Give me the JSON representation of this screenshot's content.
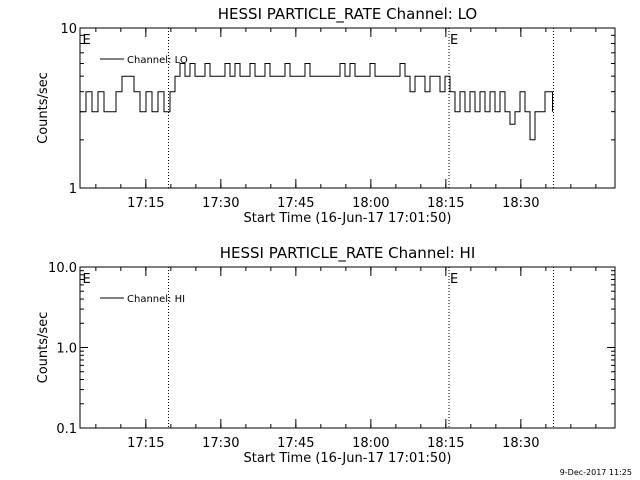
{
  "colors": {
    "background": "#ffffff",
    "foreground": "#000000"
  },
  "footer": {
    "date_stamp": "9-Dec-2017 11:25"
  },
  "chart_data": [
    {
      "type": "line",
      "title": "HESSI PARTICLE_RATE Channel: LO",
      "xlabel": "Start Time (16-Jun-17 17:01:50)",
      "ylabel": "Counts/sec",
      "yscale": "log",
      "ylim": [
        1,
        10
      ],
      "xlim_minutes": [
        0,
        107
      ],
      "ytick_labels": [
        "1",
        "10"
      ],
      "xtick_labels": [
        "17:15",
        "17:30",
        "17:45",
        "18:00",
        "18:15",
        "18:30"
      ],
      "xtick_minutes": [
        13.17,
        28.17,
        43.17,
        58.17,
        73.17,
        88.17
      ],
      "event_marker_label": "E",
      "event_marker_minutes": [
        0.3,
        73.8
      ],
      "vlines_minutes": [
        17.7,
        73.8,
        94.7
      ],
      "legend": "top-left",
      "series": [
        {
          "name": "Channel: LO",
          "x_minutes": [
            0,
            1.2,
            2.4,
            3.6,
            4.8,
            6,
            7.2,
            8.4,
            9.6,
            10.8,
            12,
            13.2,
            14.4,
            15.6,
            16.8,
            17.6,
            18,
            19,
            20,
            21,
            22,
            23,
            24,
            25,
            26,
            27,
            28,
            29,
            30,
            31,
            32,
            33,
            34,
            35,
            36,
            37,
            38,
            39,
            40,
            41,
            42,
            43,
            44,
            45,
            46,
            47,
            48,
            49,
            50,
            51,
            52,
            53,
            54,
            55,
            56,
            57,
            58,
            59,
            60,
            61,
            62,
            63,
            64,
            65,
            66,
            67,
            68,
            69,
            70,
            71,
            72,
            73,
            74,
            75,
            76,
            77,
            78,
            79,
            80,
            81,
            82,
            83,
            84,
            85,
            86,
            87,
            88,
            89,
            90,
            91,
            92,
            93,
            94.5
          ],
          "values": [
            3,
            4,
            3,
            4,
            3,
            3,
            4,
            5,
            5,
            4,
            3,
            4,
            3,
            4,
            3,
            3,
            4,
            5,
            6,
            5,
            6,
            5,
            5,
            6,
            5,
            5,
            5,
            6,
            5,
            6,
            5,
            5,
            6,
            5,
            5,
            6,
            5,
            5,
            5,
            6,
            5,
            5,
            5,
            6,
            5,
            5,
            5,
            5,
            5,
            5,
            6,
            5,
            6,
            5,
            5,
            5,
            6,
            5,
            5,
            5,
            5,
            5,
            6,
            5,
            4,
            5,
            5,
            4,
            5,
            5,
            4,
            5,
            4,
            3,
            4,
            3,
            4,
            3,
            4,
            3,
            4,
            3,
            4,
            3,
            2.5,
            3,
            4,
            3,
            2,
            3,
            3,
            4,
            3
          ]
        }
      ]
    },
    {
      "type": "line",
      "title": "HESSI PARTICLE_RATE Channel: HI",
      "xlabel": "Start Time (16-Jun-17 17:01:50)",
      "ylabel": "Counts/sec",
      "yscale": "log",
      "ylim": [
        0.1,
        10
      ],
      "xlim_minutes": [
        0,
        107
      ],
      "ytick_labels": [
        "0.1",
        "1.0",
        "10.0"
      ],
      "xtick_labels": [
        "17:15",
        "17:30",
        "17:45",
        "18:00",
        "18:15",
        "18:30"
      ],
      "xtick_minutes": [
        13.17,
        28.17,
        43.17,
        58.17,
        73.17,
        88.17
      ],
      "event_marker_label": "E",
      "event_marker_minutes": [
        0.3,
        73.8
      ],
      "vlines_minutes": [
        17.7,
        73.8,
        94.7
      ],
      "legend": "top-left",
      "series": [
        {
          "name": "Channel: HI",
          "x_minutes": [],
          "values": []
        }
      ]
    }
  ]
}
